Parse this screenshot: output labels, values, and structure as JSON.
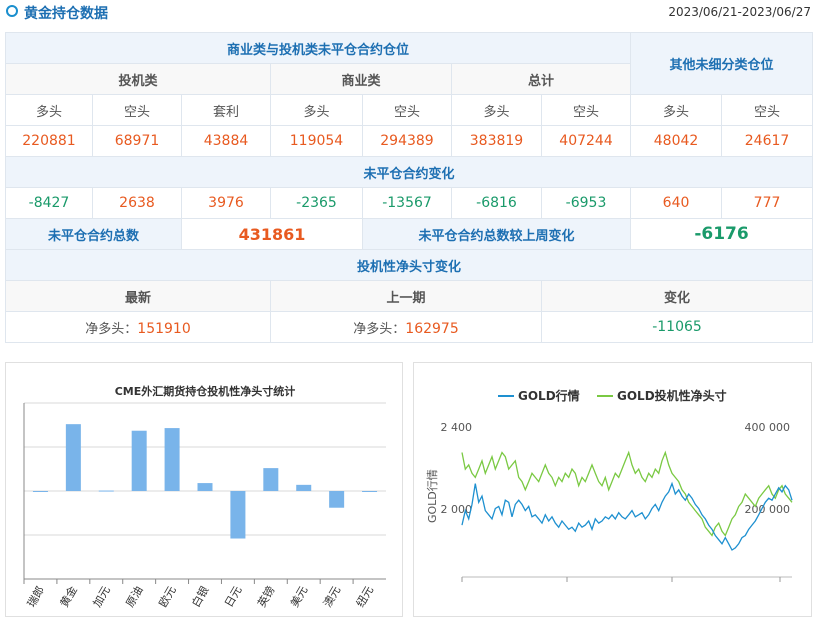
{
  "header": {
    "title": "黄金持仓数据",
    "date_range": "2023/06/21-2023/06/27"
  },
  "table": {
    "group_title": "商业类与投机类未平仓合约仓位",
    "other_title": "其他未细分类仓位",
    "col_spec": "投机类",
    "col_comm": "商业类",
    "col_total": "总计",
    "sub": [
      "多头",
      "空头",
      "套利",
      "多头",
      "空头",
      "多头",
      "空头",
      "多头",
      "空头"
    ],
    "values": [
      "220881",
      "68971",
      "43884",
      "119054",
      "294389",
      "383819",
      "407244",
      "48042",
      "24617"
    ],
    "change_title": "未平仓合约变化",
    "changes": [
      "-8427",
      "2638",
      "3976",
      "-2365",
      "-13567",
      "-6816",
      "-6953",
      "640",
      "777"
    ],
    "oi_total_label": "未平仓合约总数",
    "oi_total_value": "431861",
    "oi_change_label": "未平仓合约总数较上周变化",
    "oi_change_value": "-6176",
    "net_title": "投机性净头寸变化",
    "net_latest_label": "最新",
    "net_prev_label": "上一期",
    "net_change_label": "变化",
    "net_latest_prefix": "净多头：",
    "net_latest_value": "151910",
    "net_prev_prefix": "净多头：",
    "net_prev_value": "162975",
    "net_change_value": "-11065"
  },
  "colors": {
    "accent_blue": "#1d6fb2",
    "value_orange": "#e85a20",
    "value_green": "#1a9a6a",
    "bar_blue": "#79b4ea",
    "gold_line": "#1e90d0",
    "net_line": "#7ac943"
  },
  "chart_data": [
    {
      "type": "bar",
      "title": "CME外汇期货持仓投机性净头寸统计",
      "categories": [
        "瑞郎",
        "黄金",
        "加元",
        "原油",
        "欧元",
        "白银",
        "日元",
        "英镑",
        "美元",
        "澳元",
        "纽元"
      ],
      "values": [
        -2000,
        151910,
        1000,
        137000,
        143000,
        18000,
        -108000,
        52000,
        14000,
        -38000,
        0
      ],
      "ylim": [
        -200000,
        200000
      ],
      "grid": true
    },
    {
      "type": "line",
      "legend": [
        "GOLD行情",
        "GOLD投机性净头寸"
      ],
      "legend_position": "top",
      "ylabel_left": "GOLD行情",
      "yticks_left": [
        "2 400",
        "2 000"
      ],
      "yticks_right": [
        "400 000",
        "200 000"
      ],
      "ylim_left": [
        1600,
        2400
      ],
      "ylim_right": [
        0,
        400000
      ],
      "series": [
        {
          "name": "GOLD行情",
          "values": [
            1850,
            1920,
            1880,
            1950,
            2050,
            1960,
            1990,
            1920,
            1900,
            1880,
            1930,
            1940,
            1900,
            1970,
            1960,
            1890,
            1950,
            1970,
            1950,
            1920,
            1940,
            1890,
            1900,
            1880,
            1860,
            1900,
            1870,
            1890,
            1860,
            1840,
            1870,
            1850,
            1830,
            1840,
            1820,
            1860,
            1840,
            1850,
            1870,
            1830,
            1880,
            1860,
            1870,
            1890,
            1880,
            1900,
            1880,
            1910,
            1890,
            1880,
            1900,
            1920,
            1890,
            1900,
            1910,
            1880,
            1900,
            1930,
            1950,
            1920,
            1960,
            1990,
            2010,
            2050,
            2000,
            2020,
            1990,
            1970,
            2000,
            1980,
            1950,
            1930,
            1900,
            1880,
            1850,
            1830,
            1800,
            1780,
            1760,
            1790,
            1760,
            1730,
            1740,
            1760,
            1790,
            1800,
            1830,
            1850,
            1870,
            1900,
            1930,
            1960,
            1980,
            1970,
            2000,
            2030,
            2010,
            2040,
            2020,
            1970
          ]
        },
        {
          "name": "GOLD投机性净头寸",
          "values": [
            300000,
            260000,
            270000,
            250000,
            240000,
            260000,
            280000,
            250000,
            270000,
            290000,
            260000,
            280000,
            300000,
            290000,
            260000,
            270000,
            280000,
            240000,
            230000,
            210000,
            230000,
            250000,
            240000,
            230000,
            250000,
            270000,
            250000,
            240000,
            220000,
            240000,
            230000,
            250000,
            240000,
            260000,
            250000,
            220000,
            240000,
            230000,
            250000,
            270000,
            250000,
            230000,
            220000,
            240000,
            210000,
            230000,
            250000,
            240000,
            260000,
            280000,
            300000,
            270000,
            250000,
            260000,
            240000,
            230000,
            250000,
            240000,
            260000,
            250000,
            280000,
            300000,
            270000,
            250000,
            240000,
            230000,
            210000,
            200000,
            180000,
            170000,
            160000,
            150000,
            140000,
            120000,
            110000,
            100000,
            120000,
            130000,
            110000,
            100000,
            120000,
            140000,
            150000,
            170000,
            180000,
            200000,
            190000,
            180000,
            170000,
            190000,
            200000,
            210000,
            220000,
            200000,
            190000,
            210000,
            220000,
            200000,
            190000,
            180000
          ]
        }
      ]
    }
  ]
}
